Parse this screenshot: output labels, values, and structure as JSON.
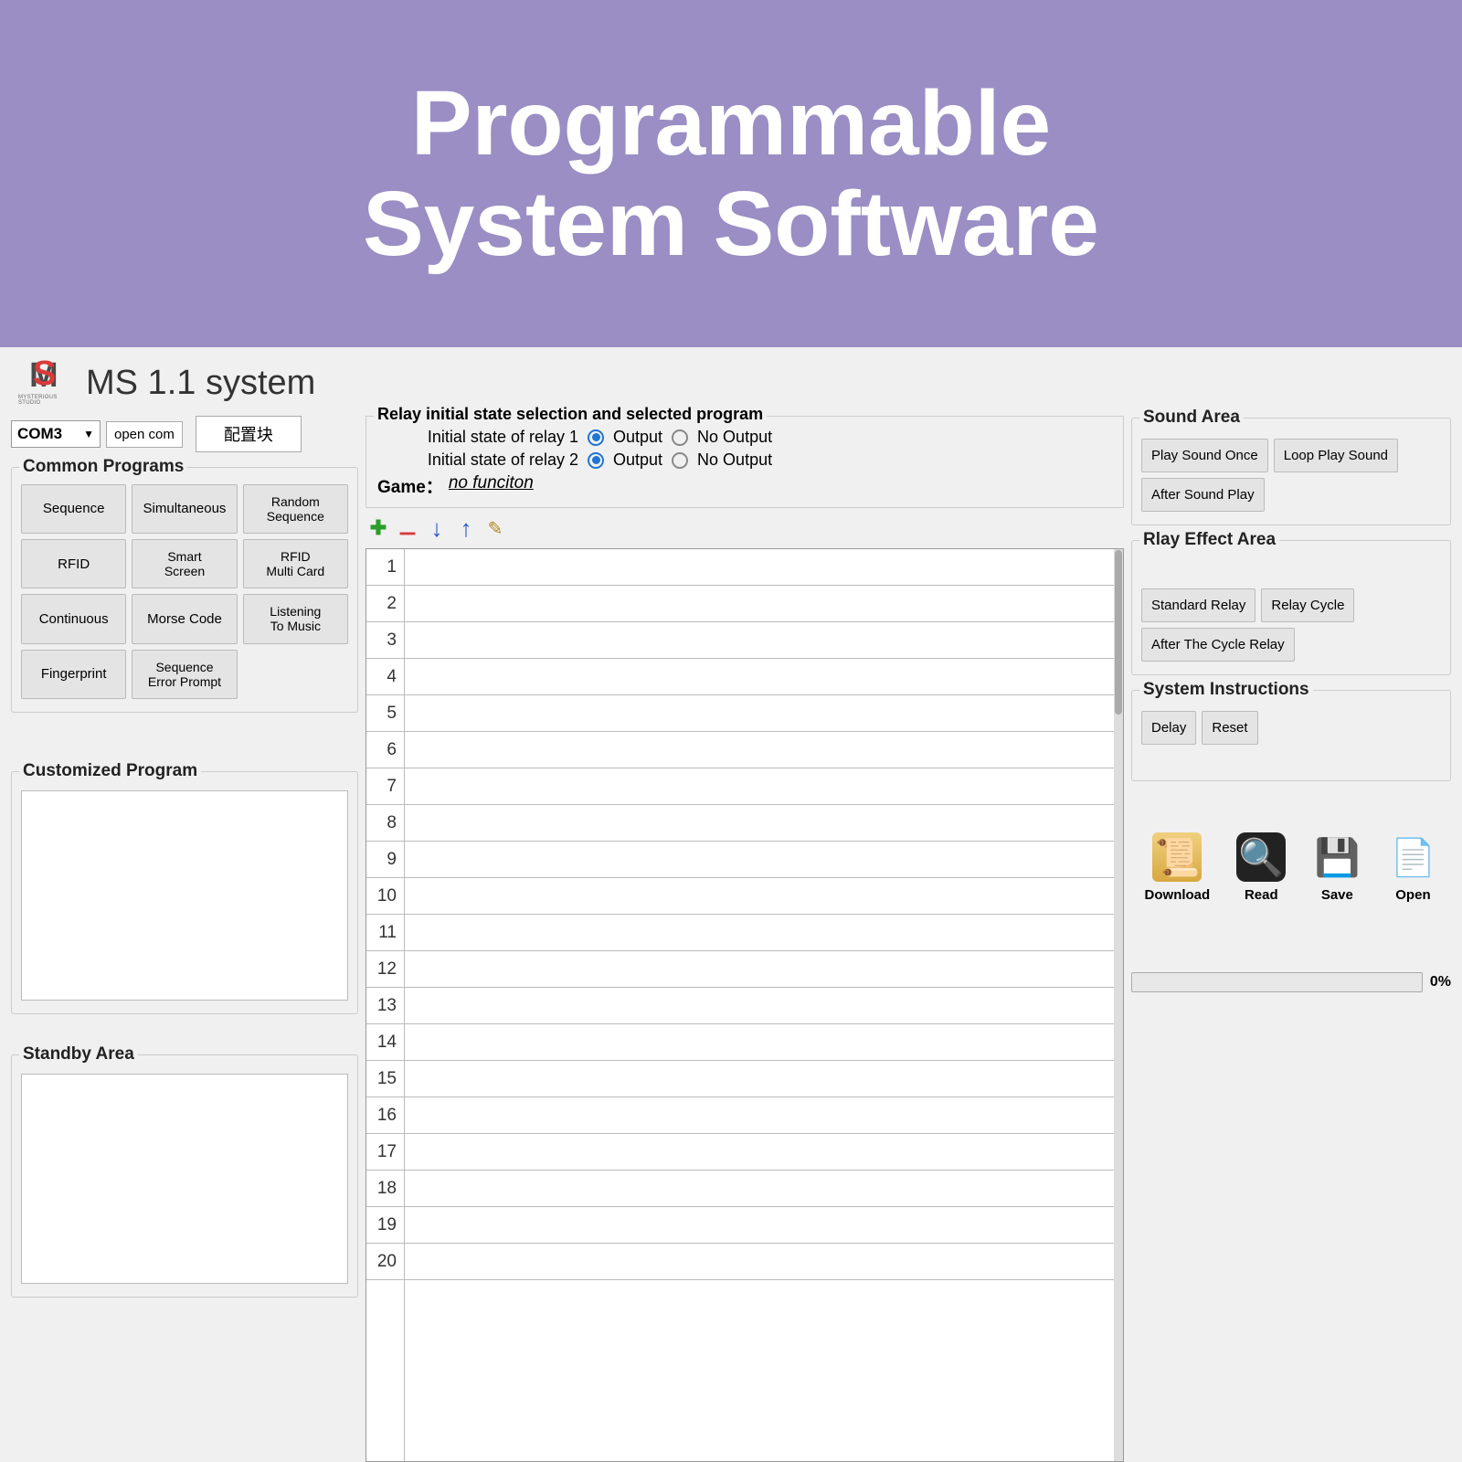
{
  "banner": {
    "line1": "Programmable",
    "line2": "System Software"
  },
  "app": {
    "title": "MS 1.1 system",
    "logo_sub": "MYSTERIOUS STUDIO",
    "com_port": "COM3",
    "open_com": "open com",
    "config_btn": "配置块"
  },
  "common_programs": {
    "legend": "Common Programs",
    "buttons": [
      "Sequence",
      "Simultaneous",
      "Random\nSequence",
      "RFID",
      "Smart\nScreen",
      "RFID\nMulti Card",
      "Continuous",
      "Morse Code",
      "Listening\nTo Music",
      "Fingerprint",
      "Sequence\nError Prompt"
    ]
  },
  "customized": {
    "legend": "Customized Program"
  },
  "standby": {
    "legend": "Standby Area"
  },
  "relay": {
    "legend": "Relay initial state selection and selected program",
    "row1_label": "Initial state of relay 1",
    "row2_label": "Initial state of relay 2",
    "output": "Output",
    "no_output": "No Output",
    "game_label": "Game：",
    "game_value": "no funciton"
  },
  "list": {
    "rows": 20
  },
  "sound": {
    "legend": "Sound Area",
    "buttons": [
      "Play Sound Once",
      "Loop Play Sound",
      "After Sound Play"
    ]
  },
  "relay_effect": {
    "legend": "Rlay Effect Area",
    "buttons": [
      "Standard Relay",
      "Relay Cycle",
      "After The Cycle Relay"
    ]
  },
  "system_instructions": {
    "legend": "System Instructions",
    "buttons": [
      "Delay",
      "Reset"
    ]
  },
  "file_actions": {
    "download": "Download",
    "read": "Read",
    "save": "Save",
    "open": "Open"
  },
  "progress": {
    "value": "0%"
  },
  "colors": {
    "banner_bg": "#9a8ec4",
    "app_bg": "#f0f0f0",
    "accent_blue": "#2074d4",
    "logo_red": "#d83b3b"
  }
}
